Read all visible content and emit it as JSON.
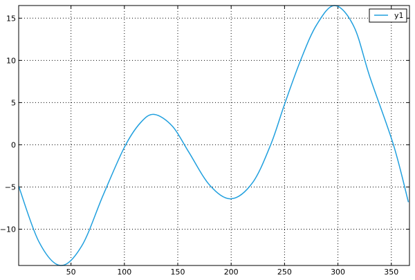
{
  "chart_data": {
    "type": "line",
    "title": "",
    "xlabel": "",
    "ylabel": "",
    "xlim": [
      1,
      367
    ],
    "ylim": [
      -14.3,
      16.5
    ],
    "xticks": [
      50,
      100,
      150,
      200,
      250,
      300,
      350
    ],
    "yticks": [
      -10,
      -5,
      0,
      5,
      10,
      15
    ],
    "ytick_labels": [
      "−10",
      "−5",
      "0",
      "5",
      "10",
      "15"
    ],
    "grid": true,
    "legend": "top-right",
    "series": [
      {
        "name": "y1",
        "color": "#1f9fde",
        "x": [
          1,
          20,
          40,
          60,
          80,
          100,
          115,
          128,
          145,
          160,
          180,
          200,
          220,
          237,
          250,
          265,
          280,
          297,
          315,
          330,
          352,
          366
        ],
        "y": [
          -4.9,
          -11.5,
          -14.3,
          -12,
          -6,
          -0.3,
          2.6,
          3.6,
          2.2,
          -0.8,
          -4.8,
          -6.4,
          -4.5,
          0,
          4.8,
          10,
          14.2,
          16.5,
          14,
          8,
          0,
          -6.8
        ]
      }
    ]
  }
}
